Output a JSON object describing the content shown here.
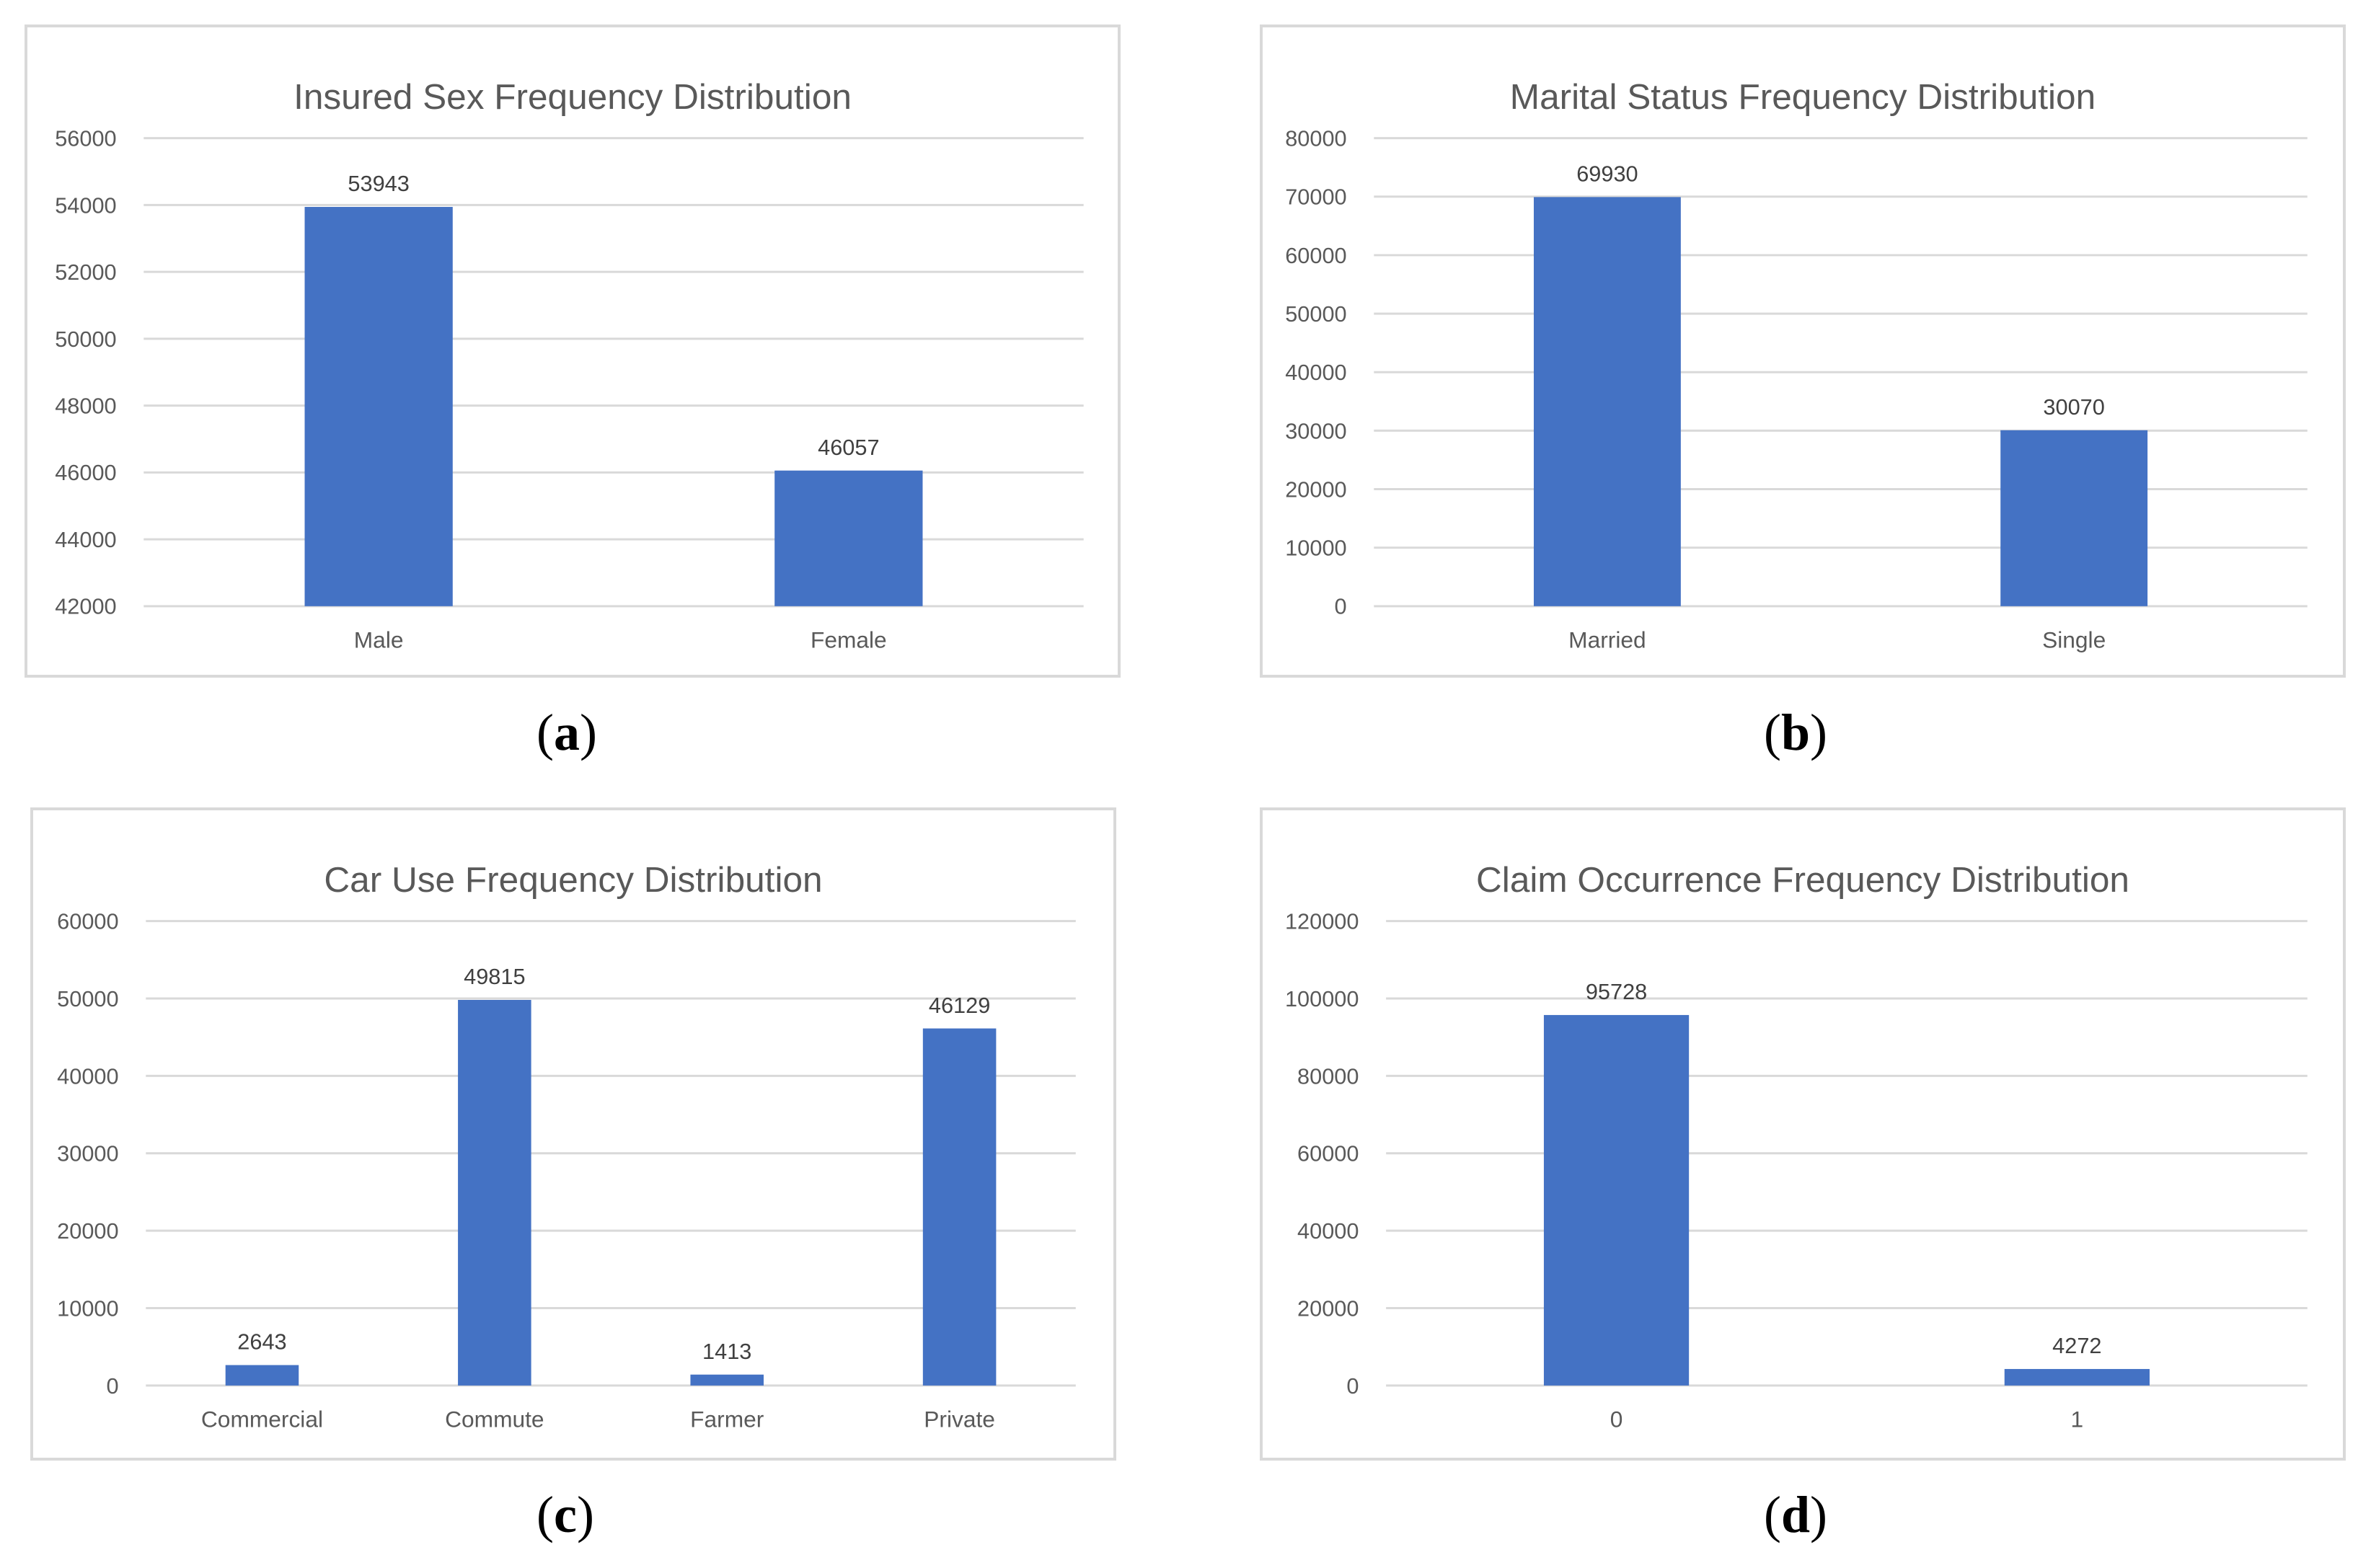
{
  "chart_data": [
    {
      "type": "bar",
      "title": "Insured Sex Frequency Distribution",
      "categories": [
        "Male",
        "Female"
      ],
      "values": [
        53943,
        46057
      ],
      "ylim": [
        42000,
        56000
      ],
      "yticks": [
        42000,
        44000,
        46000,
        48000,
        50000,
        52000,
        54000,
        56000
      ],
      "xlabel": "",
      "ylabel": "",
      "grid": true,
      "color": "#4472C4",
      "caption_letter": "a"
    },
    {
      "type": "bar",
      "title": "Marital Status Frequency Distribution",
      "categories": [
        "Married",
        "Single"
      ],
      "values": [
        69930,
        30070
      ],
      "ylim": [
        0,
        80000
      ],
      "yticks": [
        0,
        10000,
        20000,
        30000,
        40000,
        50000,
        60000,
        70000,
        80000
      ],
      "xlabel": "",
      "ylabel": "",
      "grid": true,
      "color": "#4472C4",
      "caption_letter": "b"
    },
    {
      "type": "bar",
      "title": "Car Use Frequency Distribution",
      "categories": [
        "Commercial",
        "Commute",
        "Farmer",
        "Private"
      ],
      "values": [
        2643,
        49815,
        1413,
        46129
      ],
      "ylim": [
        0,
        60000
      ],
      "yticks": [
        0,
        10000,
        20000,
        30000,
        40000,
        50000,
        60000
      ],
      "xlabel": "",
      "ylabel": "",
      "grid": true,
      "color": "#4472C4",
      "caption_letter": "c"
    },
    {
      "type": "bar",
      "title": "Claim Occurrence Frequency Distribution",
      "categories": [
        "0",
        "1"
      ],
      "values": [
        95728,
        4272
      ],
      "ylim": [
        0,
        120000
      ],
      "yticks": [
        0,
        20000,
        40000,
        60000,
        80000,
        100000,
        120000
      ],
      "xlabel": "",
      "ylabel": "",
      "grid": true,
      "color": "#4472C4",
      "caption_letter": "d"
    }
  ]
}
